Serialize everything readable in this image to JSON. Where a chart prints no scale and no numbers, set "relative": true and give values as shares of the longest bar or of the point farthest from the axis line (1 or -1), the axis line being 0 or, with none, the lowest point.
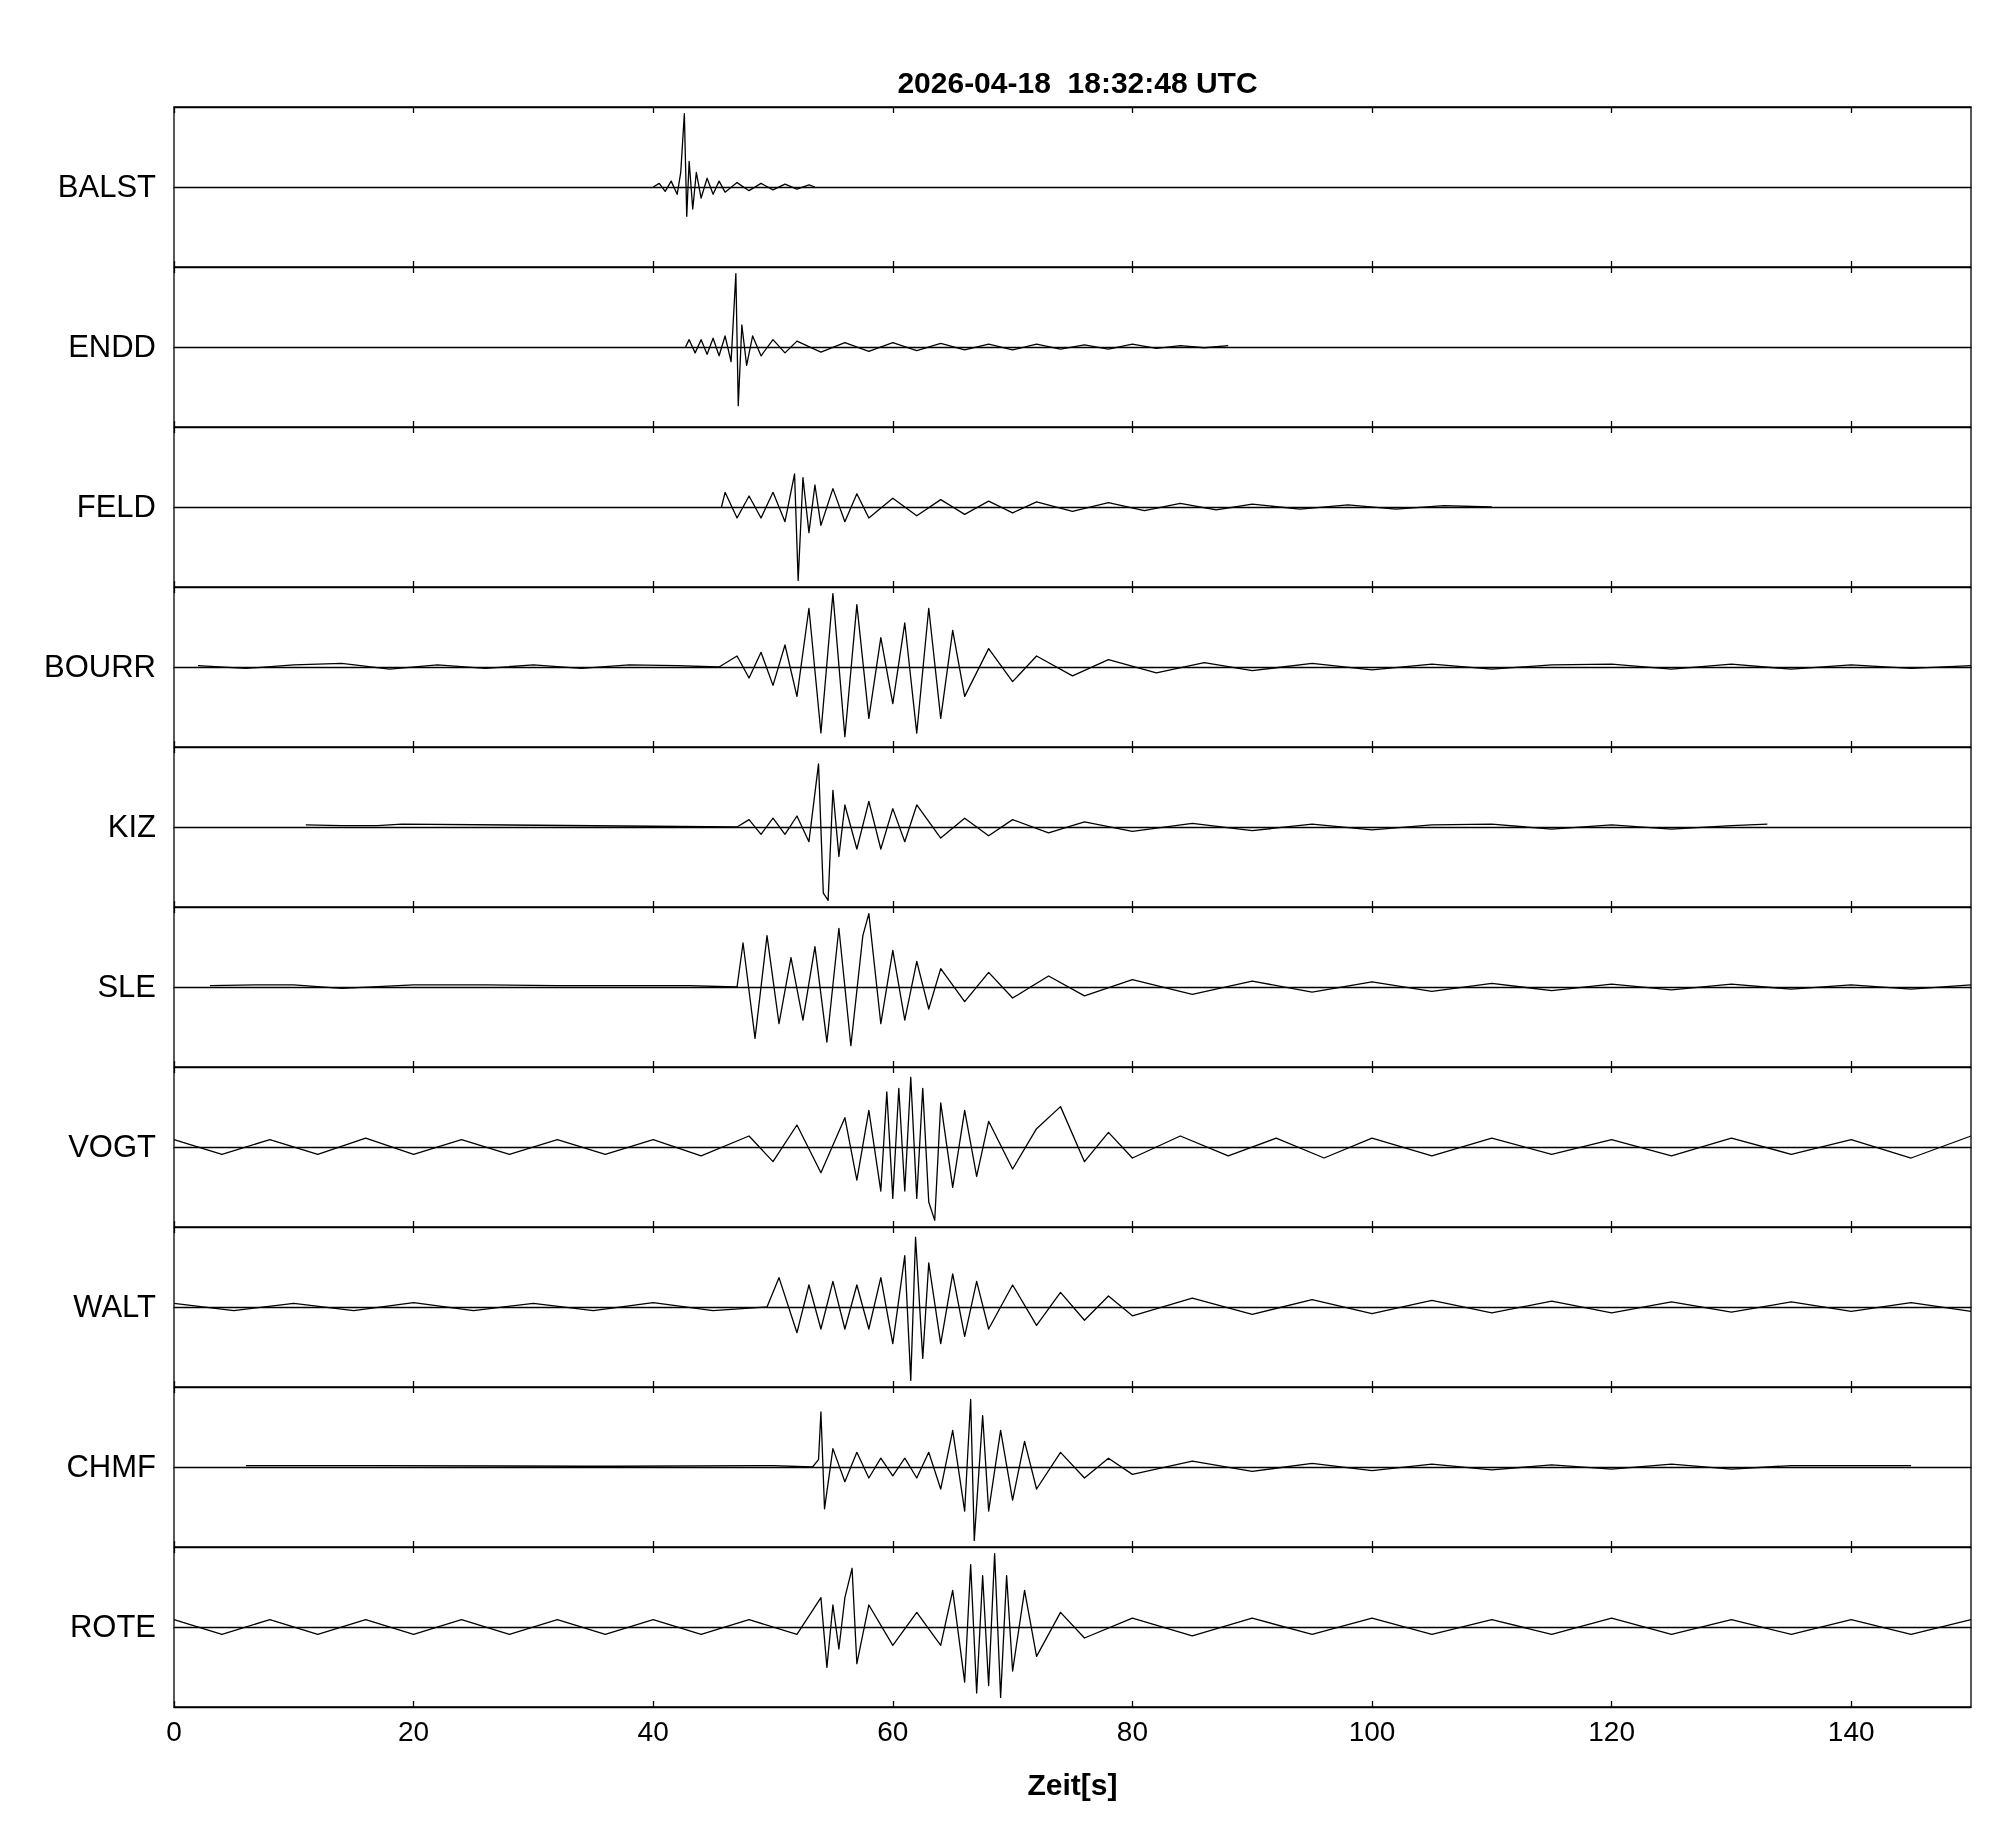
{
  "chart_data": [
    {
      "type": "line",
      "title": "2026-04-18  18:32:48 UTC",
      "ylabel": "BALST",
      "relative": true,
      "marker": "none",
      "tick_labels": false,
      "xlim": [
        0,
        150
      ],
      "xticks": [
        0,
        20,
        40,
        60,
        80,
        100,
        120,
        140
      ],
      "series": [
        {
          "color": "#000000",
          "x": [
            40,
            40.5,
            41,
            41.5,
            42,
            42.3,
            42.6,
            42.8,
            43,
            43.3,
            43.6,
            44,
            44.5,
            45,
            45.5,
            46,
            47,
            48,
            49,
            50,
            51,
            52,
            53,
            53.5
          ],
          "values": [
            0,
            0.05,
            -0.06,
            0.08,
            -0.1,
            0.2,
            1,
            -0.4,
            0.35,
            -0.3,
            0.2,
            -0.15,
            0.12,
            -0.1,
            0.08,
            -0.07,
            0.06,
            -0.05,
            0.05,
            -0.04,
            0.04,
            -0.03,
            0.03,
            0
          ]
        }
      ]
    },
    {
      "type": "line",
      "ylabel": "ENDD",
      "relative": true,
      "marker": "none",
      "tick_labels": false,
      "xlim": [
        0,
        150
      ],
      "xticks": [
        0,
        20,
        40,
        60,
        80,
        100,
        120,
        140
      ],
      "series": [
        {
          "color": "#000000",
          "x": [
            42.7,
            43,
            43.5,
            44,
            44.5,
            45,
            45.5,
            46,
            46.5,
            46.9,
            47.1,
            47.4,
            47.8,
            48.3,
            49,
            50,
            51,
            52,
            54,
            56,
            58,
            60,
            62,
            64,
            66,
            68,
            70,
            72,
            74,
            76,
            78,
            80,
            82,
            84,
            86,
            88
          ],
          "values": [
            0,
            0.1,
            -0.08,
            0.1,
            -0.1,
            0.12,
            -0.12,
            0.15,
            -0.2,
            1,
            -0.8,
            0.3,
            -0.25,
            0.15,
            -0.12,
            0.1,
            -0.08,
            0.08,
            -0.07,
            0.06,
            -0.06,
            0.06,
            -0.05,
            0.05,
            -0.04,
            0.04,
            -0.04,
            0.04,
            -0.03,
            0.03,
            -0.03,
            0.04,
            -0.02,
            0.02,
            -0.01,
            0.02
          ]
        }
      ]
    },
    {
      "type": "line",
      "ylabel": "FELD",
      "relative": true,
      "marker": "none",
      "tick_labels": false,
      "xlim": [
        0,
        150
      ],
      "xticks": [
        0,
        20,
        40,
        60,
        80,
        100,
        120,
        140
      ],
      "series": [
        {
          "color": "#000000",
          "x": [
            45.7,
            46,
            47,
            48,
            49,
            50,
            51,
            51.8,
            52.1,
            52.5,
            53,
            53.5,
            54,
            55,
            56,
            57,
            58,
            60,
            62,
            64,
            66,
            68,
            70,
            72,
            75,
            78,
            81,
            84,
            87,
            90,
            94,
            98,
            102,
            106,
            110
          ],
          "values": [
            0,
            0.2,
            -0.15,
            0.15,
            -0.15,
            0.2,
            -0.2,
            0.45,
            -1,
            0.4,
            -0.35,
            0.3,
            -0.25,
            0.25,
            -0.2,
            0.18,
            -0.15,
            0.12,
            -0.12,
            0.1,
            -0.1,
            0.08,
            -0.08,
            0.07,
            -0.06,
            0.06,
            -0.05,
            0.05,
            -0.04,
            0.04,
            -0.03,
            0.03,
            -0.03,
            0.02,
            0
          ]
        }
      ]
    },
    {
      "type": "line",
      "ylabel": "BOURR",
      "relative": true,
      "marker": "none",
      "tick_labels": false,
      "xlim": [
        0,
        150
      ],
      "xticks": [
        0,
        20,
        40,
        60,
        80,
        100,
        120,
        140
      ],
      "series": [
        {
          "color": "#000000",
          "x": [
            2,
            6,
            10,
            14,
            18,
            22,
            26,
            30,
            34,
            38,
            42,
            45.5,
            47,
            48,
            49,
            50,
            51,
            52,
            53,
            54,
            55,
            56,
            57,
            58,
            59,
            60,
            61,
            62,
            63,
            64,
            65,
            66,
            68,
            70,
            72,
            75,
            78,
            82,
            86,
            90,
            95,
            100,
            105,
            110,
            115,
            120,
            125,
            130,
            135,
            140,
            145,
            150
          ],
          "values": [
            0.02,
            -0.02,
            0.03,
            0.05,
            -0.03,
            0.03,
            -0.02,
            0.03,
            -0.02,
            0.03,
            0.02,
            0,
            0.15,
            -0.15,
            0.2,
            -0.25,
            0.3,
            -0.4,
            0.8,
            -0.9,
            1,
            -0.95,
            0.85,
            -0.7,
            0.4,
            -0.5,
            0.6,
            -0.9,
            0.8,
            -0.7,
            0.5,
            -0.4,
            0.25,
            -0.2,
            0.15,
            -0.12,
            0.1,
            -0.08,
            0.06,
            -0.05,
            0.05,
            -0.04,
            0.04,
            -0.03,
            0.03,
            0.04,
            -0.03,
            0.04,
            -0.03,
            0.03,
            -0.02,
            0.02
          ]
        }
      ]
    },
    {
      "type": "line",
      "ylabel": "KIZ",
      "relative": true,
      "marker": "none",
      "tick_labels": false,
      "xlim": [
        0,
        150
      ],
      "xticks": [
        0,
        20,
        40,
        60,
        80,
        100,
        120,
        140
      ],
      "series": [
        {
          "color": "#000000",
          "x": [
            11,
            14,
            17,
            19,
            47,
            48,
            49,
            50,
            51,
            52,
            53,
            53.8,
            54.2,
            54.6,
            55,
            55.5,
            56,
            57,
            58,
            59,
            60,
            61,
            62,
            64,
            66,
            68,
            70,
            73,
            76,
            80,
            85,
            90,
            95,
            100,
            105,
            110,
            115,
            120,
            125,
            130,
            133
          ],
          "values": [
            0.03,
            0.02,
            0.02,
            0.04,
            0,
            0.1,
            -0.1,
            0.12,
            -0.1,
            0.15,
            -0.2,
            0.86,
            -0.9,
            -1,
            0.5,
            -0.4,
            0.3,
            -0.3,
            0.35,
            -0.3,
            0.25,
            -0.2,
            0.3,
            -0.15,
            0.12,
            -0.12,
            0.1,
            -0.08,
            0.07,
            -0.06,
            0.05,
            -0.05,
            0.04,
            -0.04,
            0.03,
            0.04,
            -0.03,
            0.03,
            -0.03,
            0.02,
            0.04
          ]
        }
      ]
    },
    {
      "type": "line",
      "ylabel": "SLE",
      "relative": true,
      "marker": "none",
      "tick_labels": false,
      "xlim": [
        0,
        150
      ],
      "xticks": [
        0,
        20,
        40,
        60,
        80,
        100,
        120,
        140
      ],
      "series": [
        {
          "color": "#000000",
          "x": [
            3,
            7,
            10,
            14,
            20,
            26,
            32,
            38,
            43,
            47,
            47.5,
            48.5,
            49.5,
            50.5,
            51.5,
            52.5,
            53.5,
            54.5,
            55.5,
            56.5,
            57.5,
            58,
            59,
            60,
            61,
            62,
            63,
            64,
            66,
            68,
            70,
            73,
            76,
            80,
            85,
            90,
            95,
            100,
            105,
            110,
            115,
            120,
            125,
            130,
            135,
            140,
            145,
            150
          ],
          "values": [
            0.02,
            0.03,
            0.03,
            -0.02,
            0.03,
            0.03,
            0.02,
            0.02,
            0.02,
            0,
            0.6,
            -0.7,
            0.7,
            -0.5,
            0.4,
            -0.45,
            0.55,
            -0.75,
            0.8,
            -0.8,
            0.7,
            1,
            -0.5,
            0.5,
            -0.45,
            0.35,
            -0.3,
            0.25,
            -0.2,
            0.2,
            -0.15,
            0.15,
            -0.12,
            0.1,
            -0.1,
            0.08,
            -0.07,
            0.07,
            -0.06,
            0.05,
            -0.05,
            0.04,
            -0.04,
            0.04,
            -0.03,
            0.03,
            -0.03,
            0.03
          ]
        }
      ]
    },
    {
      "type": "line",
      "ylabel": "VOGT",
      "relative": true,
      "marker": "none",
      "tick_labels": false,
      "xlim": [
        0,
        150
      ],
      "xticks": [
        0,
        20,
        40,
        60,
        80,
        100,
        120,
        140
      ],
      "series": [
        {
          "color": "#000000",
          "x": [
            0,
            4,
            8,
            12,
            16,
            20,
            24,
            28,
            32,
            36,
            40,
            44,
            48,
            50,
            52,
            54,
            56,
            57,
            58,
            59,
            59.5,
            60,
            60.5,
            61,
            61.5,
            62,
            62.5,
            63,
            63.5,
            64,
            65,
            66,
            67,
            68,
            70,
            72,
            74,
            76,
            78,
            80,
            84,
            88,
            92,
            96,
            100,
            105,
            110,
            115,
            120,
            125,
            130,
            135,
            140,
            145,
            150
          ],
          "values": [
            0.1,
            -0.1,
            0.1,
            -0.1,
            0.12,
            -0.1,
            0.1,
            -0.1,
            0.1,
            -0.1,
            0.1,
            -0.12,
            0.15,
            -0.2,
            0.3,
            -0.35,
            0.4,
            -0.45,
            0.5,
            -0.6,
            0.75,
            -0.7,
            0.8,
            -0.6,
            0.95,
            -0.7,
            0.8,
            -0.75,
            -1,
            0.6,
            -0.55,
            0.5,
            -0.4,
            0.35,
            -0.3,
            0.25,
            0.55,
            -0.2,
            0.2,
            -0.15,
            0.15,
            -0.12,
            0.12,
            -0.15,
            0.12,
            -0.12,
            0.12,
            -0.1,
            0.1,
            -0.12,
            0.12,
            -0.1,
            0.1,
            -0.15,
            0.15
          ]
        }
      ]
    },
    {
      "type": "line",
      "ylabel": "WALT",
      "relative": true,
      "marker": "none",
      "tick_labels": false,
      "xlim": [
        0,
        150
      ],
      "xticks": [
        0,
        20,
        40,
        60,
        80,
        100,
        120,
        140
      ],
      "series": [
        {
          "color": "#000000",
          "x": [
            0,
            5,
            10,
            15,
            20,
            25,
            30,
            35,
            40,
            45,
            49.5,
            50.5,
            52,
            53,
            54,
            55,
            56,
            57,
            58,
            59,
            60,
            61,
            61.5,
            61.9,
            62.5,
            63,
            64,
            65,
            66,
            67,
            68,
            70,
            72,
            74,
            76,
            78,
            80,
            85,
            90,
            95,
            100,
            105,
            110,
            115,
            120,
            125,
            130,
            135,
            140,
            145,
            150
          ],
          "values": [
            0.05,
            -0.05,
            0.05,
            -0.05,
            0.06,
            -0.05,
            0.05,
            -0.05,
            0.06,
            -0.05,
            0,
            0.4,
            -0.35,
            0.3,
            -0.3,
            0.35,
            -0.3,
            0.3,
            -0.3,
            0.4,
            -0.5,
            0.7,
            -1,
            0.95,
            -0.7,
            0.6,
            -0.5,
            0.45,
            -0.4,
            0.35,
            -0.3,
            0.3,
            -0.25,
            0.2,
            -0.18,
            0.15,
            -0.12,
            0.12,
            -0.1,
            0.1,
            -0.09,
            0.09,
            -0.08,
            0.08,
            -0.08,
            0.07,
            -0.07,
            0.07,
            -0.06,
            0.06,
            -0.06
          ]
        }
      ]
    },
    {
      "type": "line",
      "ylabel": "CHMF",
      "relative": true,
      "marker": "none",
      "tick_labels": false,
      "xlim": [
        0,
        150
      ],
      "xticks": [
        0,
        20,
        40,
        60,
        80,
        100,
        120,
        140
      ],
      "series": [
        {
          "color": "#000000",
          "x": [
            6,
            16.5,
            34,
            37,
            50,
            53.3,
            53.8,
            54,
            54.3,
            55,
            56,
            57,
            58,
            59,
            60,
            61,
            62,
            63,
            64,
            65,
            66,
            66.5,
            66.8,
            67.5,
            68,
            69,
            70,
            71,
            72,
            74,
            76,
            78,
            80,
            85,
            90,
            95,
            100,
            105,
            110,
            115,
            120,
            125,
            130,
            135,
            140,
            145
          ],
          "values": [
            0.02,
            0.02,
            0.01,
            0.01,
            0.02,
            0,
            0.1,
            0.75,
            -0.57,
            0.25,
            -0.2,
            0.2,
            -0.15,
            0.12,
            -0.12,
            0.12,
            -0.15,
            0.2,
            -0.3,
            0.5,
            -0.6,
            0.92,
            -1,
            0.7,
            -0.6,
            0.5,
            -0.45,
            0.35,
            -0.3,
            0.2,
            -0.15,
            0.12,
            -0.1,
            0.08,
            -0.06,
            0.05,
            -0.05,
            0.04,
            -0.04,
            0.03,
            -0.03,
            0.04,
            -0.03,
            0.02,
            0.02,
            0.02
          ]
        }
      ]
    },
    {
      "type": "line",
      "ylabel": "ROTE",
      "xlabel": "Zeit[s]",
      "relative": true,
      "marker": "none",
      "tick_labels": "x",
      "xlim": [
        0,
        150
      ],
      "xticks": [
        0,
        20,
        40,
        60,
        80,
        100,
        120,
        140
      ],
      "series": [
        {
          "color": "#000000",
          "x": [
            0,
            4,
            8,
            12,
            16,
            20,
            24,
            28,
            32,
            36,
            40,
            44,
            48,
            52,
            54,
            54.5,
            55,
            55.5,
            56,
            56.6,
            57,
            58,
            60,
            62,
            64,
            65,
            66,
            66.5,
            67,
            67.5,
            68,
            68.5,
            69,
            69.5,
            70,
            71,
            72,
            74,
            76,
            80,
            85,
            90,
            95,
            100,
            105,
            110,
            115,
            120,
            125,
            130,
            135,
            140,
            145,
            150
          ],
          "values": [
            0.1,
            -0.1,
            0.1,
            -0.1,
            0.1,
            -0.1,
            0.1,
            -0.1,
            0.1,
            -0.1,
            0.1,
            -0.1,
            0.1,
            -0.1,
            0.4,
            -0.55,
            0.3,
            -0.3,
            0.4,
            0.8,
            -0.5,
            0.3,
            -0.25,
            0.2,
            -0.25,
            0.5,
            -0.75,
            0.85,
            -0.9,
            0.7,
            -0.8,
            1,
            -0.96,
            0.7,
            -0.6,
            0.5,
            -0.4,
            0.2,
            -0.15,
            0.12,
            -0.12,
            0.12,
            -0.1,
            0.12,
            -0.1,
            0.1,
            -0.1,
            0.12,
            -0.1,
            0.1,
            -0.1,
            0.1,
            -0.1,
            0.1
          ]
        }
      ]
    }
  ]
}
